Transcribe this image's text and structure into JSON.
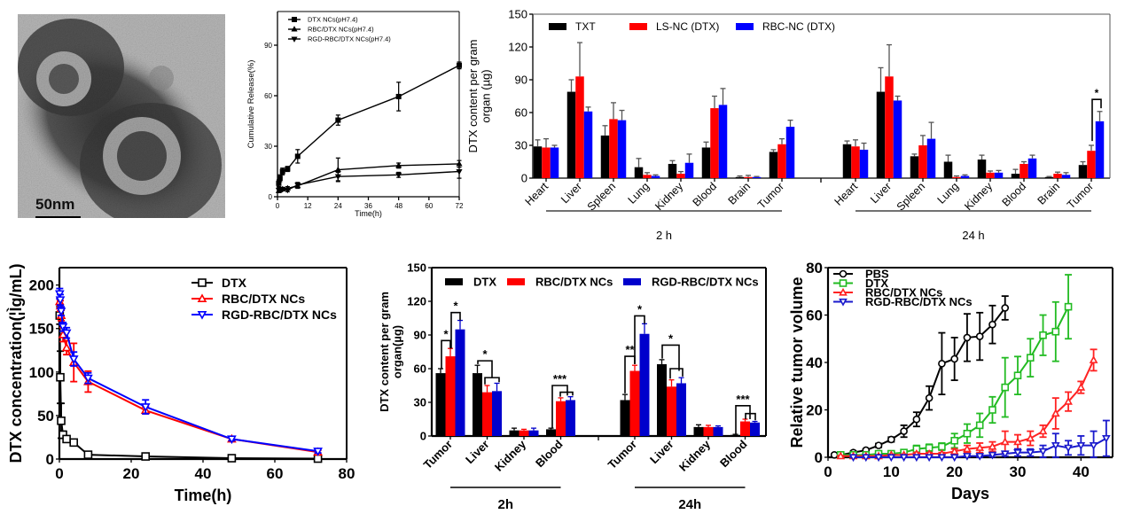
{
  "figure": {
    "panels": [
      "tem-image",
      "release-chart",
      "biodistribution-chart-top",
      "pharmacokinetics-chart",
      "biodistribution-chart-bottom",
      "tumor-volume-chart"
    ]
  },
  "tem_image": {
    "scale_bar_label": "50nm",
    "display_scale_label": "50nm"
  },
  "chart_data": [
    {
      "id": "release",
      "type": "line",
      "title": "",
      "xlabel": "Time(h)",
      "ylabel": "Cumulative Release(%)",
      "xlim": [
        0,
        72
      ],
      "ylim": [
        0,
        110
      ],
      "xticks": [
        0,
        12,
        24,
        36,
        48,
        60,
        72
      ],
      "yticks": [
        0,
        30,
        60,
        90
      ],
      "legend_position": "top-left",
      "grid": false,
      "series": [
        {
          "name": "DTX NCs(pH7.4)",
          "color": "#000000",
          "marker": "square",
          "x": [
            0.5,
            1,
            2,
            4,
            8,
            24,
            48,
            72
          ],
          "y": [
            8,
            11,
            15,
            16.5,
            24,
            45.5,
            59.5,
            78
          ],
          "err": [
            2,
            2,
            2,
            1.5,
            4,
            3,
            8.5,
            2
          ]
        },
        {
          "name": "RBC/DTX NCs(pH7.4)",
          "color": "#000000",
          "marker": "triangle-up",
          "x": [
            0.5,
            1,
            2,
            4,
            8,
            24,
            48,
            72
          ],
          "y": [
            3.5,
            4,
            4.5,
            5,
            6.5,
            16,
            18.5,
            19.5
          ],
          "err": [
            1,
            1,
            1,
            1,
            1.5,
            7,
            1.5,
            2
          ]
        },
        {
          "name": "RGD-RBC/DTX NCs(pH7.4)",
          "color": "#000000",
          "marker": "triangle-down",
          "x": [
            0.5,
            1,
            2,
            4,
            8,
            24,
            48,
            72
          ],
          "y": [
            4,
            4.5,
            4.5,
            4,
            7,
            12,
            13,
            15
          ],
          "err": [
            1,
            1,
            1,
            1,
            1.5,
            2.5,
            1.5,
            4
          ]
        }
      ]
    },
    {
      "id": "biodist_top",
      "type": "bar",
      "title": "",
      "xlabel": "",
      "ylabel": "DTX content per gram organ (µg)",
      "ylim": [
        0,
        150
      ],
      "yticks": [
        0,
        30,
        60,
        90,
        120,
        150
      ],
      "legend_position": "top",
      "grid": false,
      "groups": [
        {
          "label": "2 h",
          "categories": [
            "Heart",
            "Liver",
            "Spleen",
            "Lung",
            "Kidney",
            "Blood",
            "Brain",
            "Tumor"
          ]
        },
        {
          "label": "24 h",
          "categories": [
            "Heart",
            "Liver",
            "Spleen",
            "Lung",
            "Kidney",
            "Blood",
            "Brain",
            "Tumor"
          ]
        }
      ],
      "series": [
        {
          "name": "TXT",
          "color": "#000000",
          "values": [
            29,
            79,
            39,
            10,
            13,
            28,
            1,
            24,
            31,
            79,
            20,
            15,
            17,
            4,
            1,
            12
          ],
          "err": [
            6,
            11,
            9,
            8,
            3,
            5,
            1,
            2,
            3,
            22,
            2,
            6,
            4,
            4,
            0.5,
            3
          ]
        },
        {
          "name": "LS-NC (DTX)",
          "color": "#ff0000",
          "values": [
            28,
            93,
            54,
            3,
            4,
            64,
            1,
            31,
            29,
            93,
            30,
            1,
            5,
            13,
            4,
            25
          ],
          "err": [
            8,
            31,
            15,
            2,
            2,
            11,
            1.5,
            5,
            6,
            29,
            9,
            1,
            1.5,
            2,
            1.5,
            5
          ]
        },
        {
          "name": "RBC-NC (DTX)",
          "color": "#0000ff",
          "values": [
            28,
            61,
            53,
            2,
            14,
            67,
            1,
            47,
            26,
            71,
            36,
            2,
            5,
            18,
            3,
            52
          ],
          "err": [
            2,
            4,
            9,
            1,
            8,
            15,
            0.5,
            6,
            6,
            4,
            15,
            1,
            2,
            3,
            2,
            9
          ]
        }
      ],
      "annotations": [
        {
          "text": "*",
          "group": "24 h",
          "category": "Tumor",
          "between": [
            "LS-NC (DTX)",
            "RBC-NC (DTX)"
          ]
        }
      ]
    },
    {
      "id": "pharmacokinetics",
      "type": "line",
      "title": "",
      "xlabel": "Time(h)",
      "ylabel": "DTX concentration(µg/mL)",
      "ylabel_rendered": "DTX concentration(¦Ìg/mL)",
      "xlim": [
        0,
        80
      ],
      "ylim": [
        0,
        220
      ],
      "xticks": [
        0,
        20,
        40,
        60,
        80
      ],
      "yticks": [
        0,
        50,
        100,
        150,
        200
      ],
      "legend_position": "top-right",
      "grid": false,
      "series": [
        {
          "name": "DTX",
          "color": "#000000",
          "marker": "square-open",
          "x": [
            0.083,
            0.25,
            0.5,
            1,
            2,
            4,
            8,
            24,
            48,
            72
          ],
          "y": [
            165,
            94,
            44,
            28,
            23,
            19,
            5,
            3,
            1,
            0.5
          ],
          "err": [
            10,
            30,
            20,
            4,
            3,
            3,
            1,
            1,
            0.5,
            0.5
          ]
        },
        {
          "name": "RBC/DTX NCs",
          "color": "#ff0000",
          "marker": "triangle-up-open",
          "x": [
            0.083,
            0.25,
            0.5,
            1,
            2,
            4,
            8,
            24,
            48,
            72
          ],
          "y": [
            181,
            176,
            165,
            143,
            128,
            111,
            89,
            56,
            23,
            8
          ],
          "err": [
            4,
            6,
            6,
            8,
            8,
            22,
            12,
            4,
            2,
            2
          ]
        },
        {
          "name": "RGD-RBC/DTX NCs",
          "color": "#0000ff",
          "marker": "triangle-down-open",
          "x": [
            0.083,
            0.25,
            0.5,
            1,
            2,
            4,
            8,
            24,
            48,
            72
          ],
          "y": [
            190,
            183,
            170,
            152,
            145,
            115,
            93,
            60,
            23,
            9
          ],
          "err": [
            6,
            6,
            5,
            5,
            6,
            8,
            6,
            8,
            2,
            2
          ]
        }
      ]
    },
    {
      "id": "biodist_bottom",
      "type": "bar",
      "title": "",
      "xlabel": "",
      "ylabel": "DTX content per gram organ(µg)",
      "ylim": [
        0,
        150
      ],
      "yticks": [
        0,
        30,
        60,
        90,
        120,
        150
      ],
      "legend_position": "top",
      "grid": false,
      "groups": [
        {
          "label": "2h",
          "categories": [
            "Tumor",
            "Liver",
            "Kidney",
            "Blood"
          ]
        },
        {
          "label": "24h",
          "categories": [
            "Tumor",
            "Liver",
            "Kidney",
            "Blood"
          ]
        }
      ],
      "series": [
        {
          "name": "DTX",
          "color": "#000000",
          "values": [
            56,
            56,
            5,
            6,
            32,
            64,
            8,
            1
          ],
          "err": [
            4,
            7,
            2,
            1,
            5,
            4,
            2,
            0.5
          ]
        },
        {
          "name": "RBC/DTX NCs",
          "color": "#ff0000",
          "values": [
            71,
            39,
            5,
            31,
            58,
            44,
            8,
            13
          ],
          "err": [
            7,
            6,
            1,
            3,
            5,
            6,
            1.5,
            2
          ]
        },
        {
          "name": "RGD-RBC/DTX NCs",
          "color": "#0000cc",
          "values": [
            95,
            40,
            5,
            32,
            91,
            47,
            8,
            12
          ],
          "err": [
            8,
            7,
            2,
            3,
            9,
            5,
            1,
            1
          ]
        }
      ],
      "annotations": [
        {
          "text": "*",
          "group": "2h",
          "category": "Tumor",
          "between": [
            "DTX",
            "RBC/DTX NCs"
          ]
        },
        {
          "text": "*",
          "group": "2h",
          "category": "Tumor",
          "between": [
            "RBC/DTX NCs",
            "RGD-RBC/DTX NCs"
          ]
        },
        {
          "text": "*",
          "group": "2h",
          "category": "Liver",
          "between": [
            "DTX",
            "RBC/DTX NCs + RGD-RBC/DTX NCs"
          ]
        },
        {
          "text": "***",
          "group": "2h",
          "category": "Blood",
          "between": [
            "DTX",
            "RBC/DTX NCs + RGD-RBC/DTX NCs"
          ]
        },
        {
          "text": "**",
          "group": "24h",
          "category": "Tumor",
          "between": [
            "DTX",
            "RBC/DTX NCs"
          ]
        },
        {
          "text": "*",
          "group": "24h",
          "category": "Tumor",
          "between": [
            "RBC/DTX NCs",
            "RGD-RBC/DTX NCs"
          ]
        },
        {
          "text": "*",
          "group": "24h",
          "category": "Liver",
          "between": [
            "DTX",
            "RBC/DTX NCs + RGD-RBC/DTX NCs"
          ]
        },
        {
          "text": "***",
          "group": "24h",
          "category": "Blood",
          "between": [
            "DTX",
            "RBC/DTX NCs + RGD-RBC/DTX NCs"
          ]
        }
      ]
    },
    {
      "id": "tumor_volume",
      "type": "line",
      "title": "",
      "xlabel": "Days",
      "ylabel": "Relative tumor volume",
      "xlim": [
        0,
        45
      ],
      "ylim": [
        0,
        80
      ],
      "xticks": [
        0,
        10,
        20,
        30,
        40
      ],
      "yticks": [
        0,
        20,
        40,
        60,
        80
      ],
      "legend_position": "top-left",
      "grid": false,
      "series": [
        {
          "name": "PBS",
          "color": "#000000",
          "marker": "circle-open",
          "x": [
            1,
            2,
            4,
            6,
            8,
            10,
            12,
            14,
            16,
            18,
            20,
            22,
            24,
            26,
            28
          ],
          "y": [
            1,
            1,
            2,
            3,
            5,
            7.5,
            11,
            16,
            25,
            39.5,
            41.5,
            50.5,
            51,
            56,
            63
          ],
          "err": [
            0.3,
            0.3,
            0.5,
            0.5,
            0.8,
            1,
            2.5,
            3,
            5,
            13,
            9,
            10,
            10,
            8,
            5
          ]
        },
        {
          "name": "DTX",
          "color": "#22bb22",
          "marker": "square-open",
          "x": [
            2,
            4,
            6,
            8,
            10,
            12,
            14,
            16,
            18,
            20,
            22,
            24,
            26,
            28,
            30,
            32,
            34,
            36,
            38
          ],
          "y": [
            1,
            1,
            1,
            1.5,
            1.5,
            2,
            3.5,
            4,
            4.5,
            7,
            10,
            13.5,
            20,
            29.5,
            34.5,
            42,
            51.5,
            53,
            63.5
          ],
          "err": [
            0.3,
            0.3,
            0.3,
            0.4,
            0.5,
            0.5,
            1.5,
            1.5,
            1.5,
            3,
            4,
            5,
            5.5,
            12.5,
            8,
            8,
            8.5,
            12.5,
            13.5
          ]
        },
        {
          "name": "RBC/DTX NCs",
          "color": "#ff2222",
          "marker": "triangle-up-open",
          "x": [
            2,
            4,
            6,
            8,
            10,
            12,
            14,
            16,
            18,
            20,
            22,
            24,
            26,
            28,
            30,
            32,
            34,
            36,
            38,
            40,
            42
          ],
          "y": [
            0.5,
            0.5,
            0.5,
            0.5,
            1,
            1,
            1.5,
            1.5,
            1.5,
            2.5,
            3.5,
            4,
            4.5,
            6.5,
            6.5,
            8,
            11,
            18.5,
            23.5,
            29.5,
            41
          ],
          "err": [
            0.2,
            0.2,
            0.2,
            0.2,
            0.3,
            0.3,
            0.5,
            0.5,
            0.5,
            1,
            1.5,
            2,
            2,
            4.5,
            3,
            3,
            2.5,
            6.5,
            4,
            2.5,
            4.5
          ]
        },
        {
          "name": "RGD-RBC/DTX NCs",
          "color": "#1a1acc",
          "marker": "triangle-down-open",
          "x": [
            4,
            6,
            8,
            10,
            12,
            14,
            16,
            18,
            20,
            22,
            24,
            26,
            28,
            30,
            32,
            34,
            36,
            38,
            40,
            42,
            44
          ],
          "y": [
            0,
            0,
            0,
            0,
            0,
            0,
            0,
            0,
            0,
            0.5,
            0.5,
            1,
            1.5,
            2,
            2,
            2.5,
            5,
            4,
            5,
            5,
            8
          ],
          "err": [
            0.1,
            0.1,
            0.1,
            0.1,
            0.1,
            0.1,
            0.1,
            0.1,
            0.2,
            0.3,
            0.5,
            0.8,
            1,
            1.5,
            1.5,
            2.5,
            5,
            3,
            4,
            6,
            7.5
          ]
        }
      ]
    }
  ]
}
